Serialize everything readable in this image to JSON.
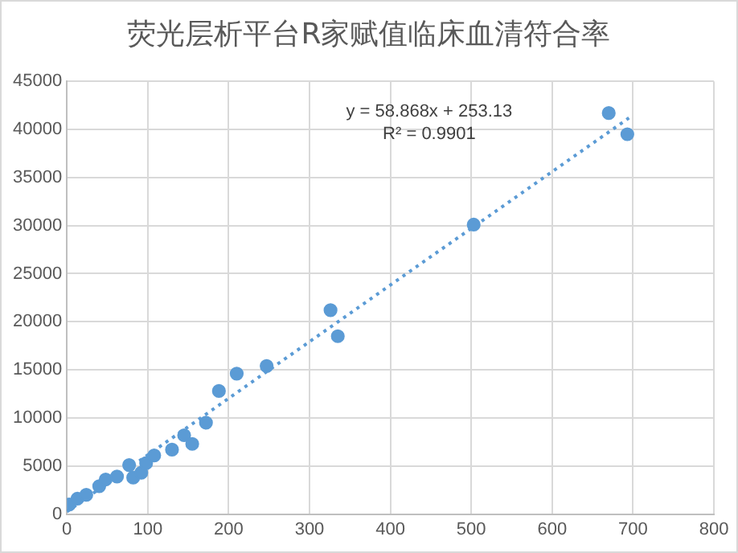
{
  "chart_data": {
    "type": "scatter",
    "title": "荧光层析平台R家赋值临床血清符合率",
    "xlim": [
      0,
      800
    ],
    "xticks": [
      0,
      100,
      200,
      300,
      400,
      500,
      600,
      700,
      800
    ],
    "ylim": [
      0,
      45000
    ],
    "yticks": [
      0,
      5000,
      10000,
      15000,
      20000,
      25000,
      30000,
      35000,
      40000,
      45000
    ],
    "grid": true,
    "legend": false,
    "marker": "circle",
    "annotations": [
      "y = 58.868x + 253.13",
      "R² = 0.9901"
    ],
    "series": [
      {
        "type": "scatter",
        "color": "#5b9bd5",
        "x": [
          3,
          13,
          24,
          40,
          48,
          62,
          77,
          82,
          92,
          98,
          108,
          130,
          145,
          155,
          172,
          188,
          210,
          247,
          326,
          335,
          503,
          670,
          693
        ],
        "values": [
          1000,
          1600,
          2000,
          2900,
          3600,
          3900,
          5100,
          3800,
          4300,
          5300,
          6100,
          6700,
          8200,
          7300,
          9500,
          12800,
          14600,
          15400,
          21200,
          18500,
          30100,
          41700,
          39500
        ]
      },
      {
        "type": "line",
        "color": "#5b9bd5",
        "line_style": "dotted",
        "marker": "none",
        "x": [
          0,
          695
        ],
        "values": [
          250,
          41200
        ]
      }
    ]
  }
}
